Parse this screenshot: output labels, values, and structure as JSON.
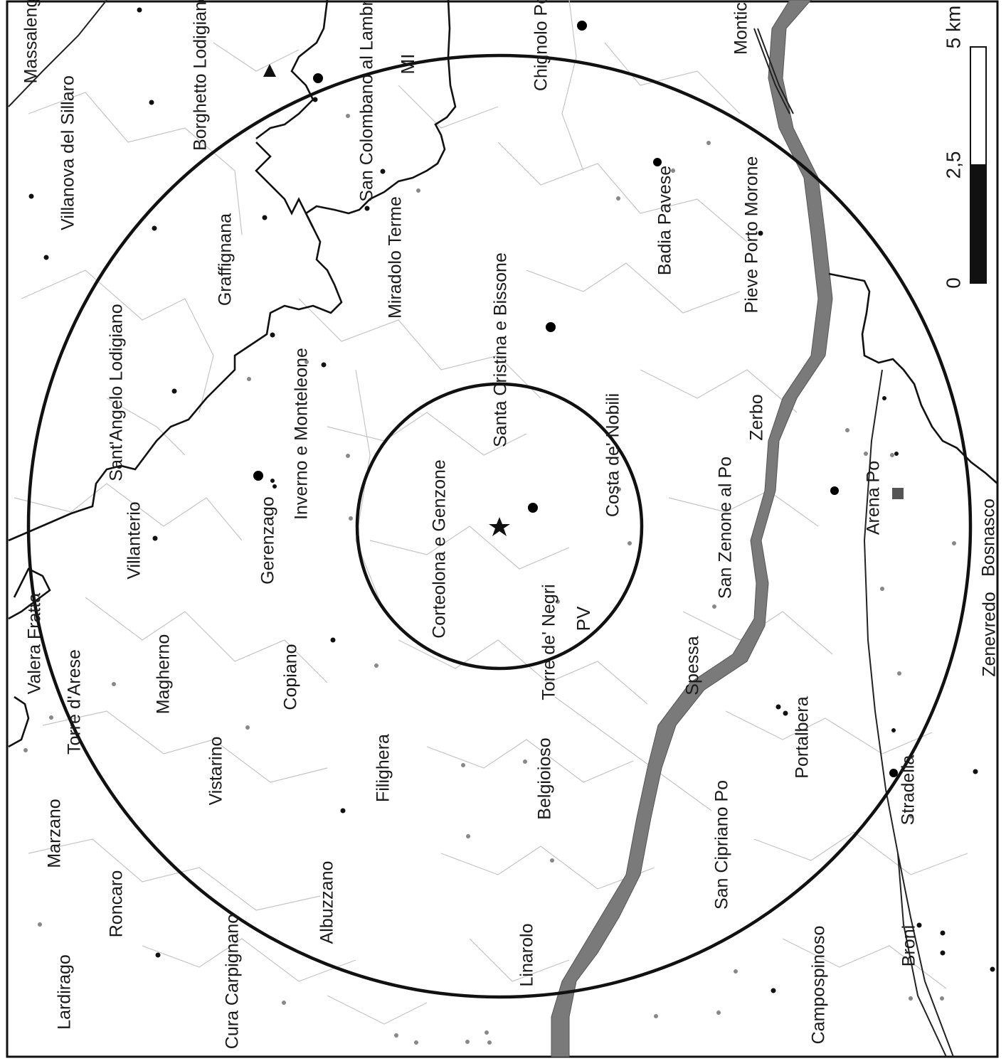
{
  "map": {
    "places": [
      "Massalengo",
      "Borghetto Lodigiano",
      "San Colombano al Lambro",
      "MI",
      "Chignolo Po",
      "Montic",
      "Villanova del Sillaro",
      "Graffignana",
      "Miradolo Terme",
      "Badia Pavese",
      "Pieve Porto Morone",
      "Sant'Angelo Lodigiano",
      "Inverno e Monteleone",
      "Santa Cristina e Bissone",
      "Zerbo",
      "Villanterio",
      "Gerenzago",
      "Corteolona e Genzone",
      "Costa de' Nobili",
      "San Zenone al Po",
      "Arena Po",
      "Bosnasco",
      "Valera Fratta",
      "Torre d'Arese",
      "Magherno",
      "Copiano",
      "Torre de' Negri",
      "PV",
      "Spessa",
      "Zenevredo",
      "Vistarino",
      "Filighera",
      "Belgioioso",
      "Portalbera",
      "Stradella",
      "Marzano",
      "San Cipriano Po",
      "Albuzzano",
      "Roncaro",
      "Linarolo",
      "Broni",
      "Lardirago",
      "Cura Carpignano",
      "Campospinoso"
    ],
    "scale": {
      "unit_label": "5 km",
      "ticks": [
        "0",
        "2,5"
      ]
    },
    "colors": {
      "river": "#7a7a7a",
      "boundary": "#c4c4c4",
      "lines": "#111111"
    },
    "symbols": [
      "star-icon",
      "triangle-icon",
      "square-icon"
    ]
  }
}
